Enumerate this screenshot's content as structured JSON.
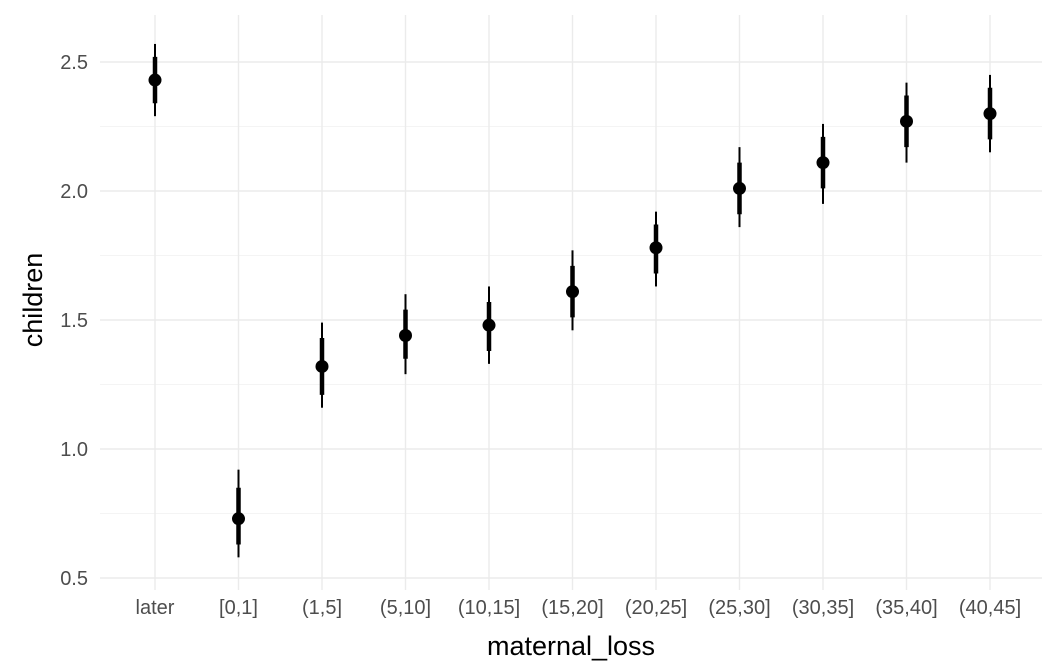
{
  "chart_data": {
    "type": "pointrange",
    "xlabel": "maternal_loss",
    "ylabel": "children",
    "categories": [
      "later",
      "[0,1]",
      "(1,5]",
      "(5,10]",
      "(10,15]",
      "(15,20]",
      "(20,25]",
      "(25,30]",
      "(30,35]",
      "(35,40]",
      "(40,45]"
    ],
    "y_ticks": [
      "0.5",
      "1.0",
      "1.5",
      "2.0",
      "2.5"
    ],
    "ylim": [
      0.5,
      2.62
    ],
    "grid": true,
    "series": [
      {
        "estimate": [
          2.43,
          0.73,
          1.32,
          1.44,
          1.48,
          1.61,
          1.78,
          2.01,
          2.11,
          2.27,
          2.3
        ],
        "inner_low": [
          2.34,
          0.63,
          1.21,
          1.35,
          1.38,
          1.51,
          1.68,
          1.91,
          2.01,
          2.17,
          2.2
        ],
        "inner_high": [
          2.52,
          0.85,
          1.43,
          1.54,
          1.57,
          1.71,
          1.87,
          2.11,
          2.21,
          2.37,
          2.4
        ],
        "outer_low": [
          2.29,
          0.58,
          1.16,
          1.29,
          1.33,
          1.46,
          1.63,
          1.86,
          1.95,
          2.11,
          2.15
        ],
        "outer_high": [
          2.57,
          0.92,
          1.49,
          1.6,
          1.63,
          1.77,
          1.92,
          2.17,
          2.26,
          2.42,
          2.45
        ]
      }
    ],
    "colors": {
      "points": "#000000",
      "grid": "#ebebeb",
      "tick_text": "#4d4d4d"
    }
  }
}
